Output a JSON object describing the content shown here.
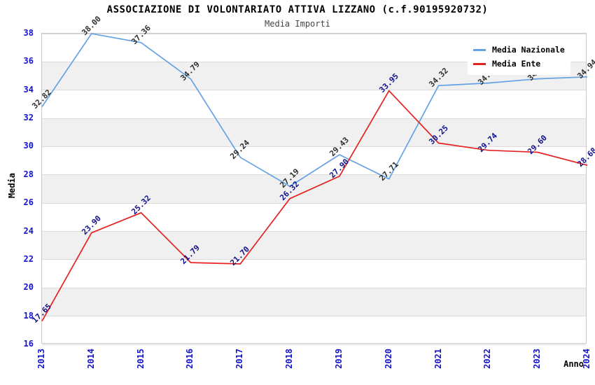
{
  "chart_data": {
    "type": "line",
    "title": "ASSOCIAZIONE DI VOLONTARIATO ATTIVA LIZZANO (c.f.90195920732)",
    "subtitle": "Media Importi",
    "xlabel": "Anno",
    "ylabel": "Media",
    "categories": [
      "2013",
      "2014",
      "2015",
      "2016",
      "2017",
      "2018",
      "2019",
      "2020",
      "2021",
      "2022",
      "2023",
      "2024"
    ],
    "ylim": [
      16,
      38
    ],
    "ytick_step": 2,
    "grid": "horizontal gridlines with alternating gray bands",
    "legend_position": "top-right inside plot, white background, overlaps 2022-2023 labels",
    "series": [
      {
        "name": "Media Nazionale",
        "color": "#64a2e5",
        "label_color": "#2e2e2e",
        "values": [
          32.82,
          38.0,
          37.36,
          34.79,
          29.24,
          27.19,
          29.43,
          27.71,
          34.32,
          34.5,
          34.8,
          34.94
        ]
      },
      {
        "name": "Media Ente",
        "color": "#e52222",
        "label_color": "#10108e",
        "values": [
          17.65,
          23.9,
          25.32,
          21.79,
          21.7,
          26.32,
          27.9,
          33.95,
          30.25,
          29.74,
          29.6,
          28.68
        ]
      }
    ],
    "styles": {
      "tick_label_color": "#1414cc",
      "band_color": "#f0f0f0",
      "gridline_color": "#dcdcdc",
      "plot_border_color": "#c8c8c8",
      "title_color": "#000000",
      "subtitle_color": "#444444",
      "background": "#ffffff"
    }
  }
}
